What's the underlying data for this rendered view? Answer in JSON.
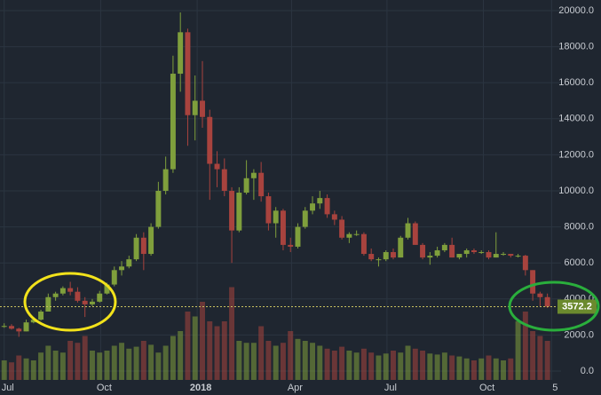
{
  "chart_data": {
    "type": "candlestick",
    "x": [
      0,
      7,
      14,
      21,
      28,
      35,
      42,
      49,
      56,
      63,
      70,
      77,
      84,
      91,
      98,
      105,
      112,
      119,
      126,
      133,
      140,
      147,
      154,
      161,
      168,
      175,
      182,
      189,
      196,
      203,
      210,
      217,
      224,
      231,
      238,
      245,
      252,
      259,
      266,
      273,
      280,
      287,
      294,
      301,
      308,
      315,
      322,
      329,
      336,
      343,
      350,
      357,
      364,
      371,
      378,
      385,
      392,
      399,
      406,
      413,
      420,
      427,
      434,
      441,
      448,
      455,
      462,
      469,
      476,
      483,
      490,
      497,
      504,
      511,
      518
    ],
    "open": [
      2450,
      2500,
      2350,
      2200,
      2700,
      2850,
      3300,
      4100,
      4300,
      4600,
      4400,
      3900,
      3700,
      3850,
      4300,
      4800,
      5600,
      5800,
      6200,
      7400,
      6500,
      8000,
      10000,
      11200,
      16500,
      18800,
      14200,
      15000,
      14100,
      11500,
      11200,
      10000,
      7800,
      9900,
      10700,
      11000,
      9700,
      8200,
      8900,
      7000,
      6900,
      8000,
      8900,
      9300,
      9600,
      8700,
      8400,
      7400,
      7600,
      7600,
      6500,
      6200,
      6200,
      6600,
      6300,
      7400,
      8200,
      7000,
      6300,
      6400,
      6700,
      7000,
      6300,
      6500,
      6700,
      6600,
      6600,
      6300,
      6500,
      6500,
      6400,
      6400,
      5600,
      4300,
      4100
    ],
    "high": [
      2650,
      2600,
      2400,
      2850,
      2900,
      3400,
      4300,
      4400,
      4700,
      4950,
      4650,
      4100,
      4000,
      4450,
      4900,
      5800,
      6100,
      6400,
      7600,
      7700,
      8200,
      10500,
      11900,
      17500,
      19900,
      19000,
      16400,
      17200,
      14500,
      12200,
      11800,
      10200,
      10200,
      11700,
      11200,
      11600,
      9900,
      9100,
      9000,
      7400,
      8200,
      9100,
      9700,
      10000,
      9800,
      8900,
      8600,
      7700,
      7800,
      7700,
      6800,
      6300,
      6700,
      6800,
      7500,
      8500,
      8300,
      7100,
      6600,
      6900,
      7100,
      7400,
      6500,
      6800,
      6800,
      6700,
      6700,
      7700,
      6600,
      6500,
      6500,
      6450,
      5600,
      4400,
      4300
    ],
    "low": [
      2400,
      2300,
      1900,
      2200,
      2650,
      2800,
      3300,
      3900,
      4200,
      4200,
      3800,
      3000,
      3600,
      3800,
      4250,
      4700,
      5300,
      5700,
      6100,
      5600,
      6400,
      7900,
      9800,
      11000,
      15500,
      12500,
      12800,
      13500,
      9500,
      10200,
      9700,
      6000,
      7700,
      9800,
      9500,
      9400,
      7800,
      7400,
      6700,
      6600,
      6800,
      7900,
      8700,
      9000,
      8500,
      8100,
      7300,
      7100,
      7500,
      6400,
      6100,
      5800,
      6100,
      6200,
      6300,
      7300,
      7000,
      6200,
      5900,
      6300,
      6600,
      6300,
      6200,
      6300,
      6500,
      6500,
      6200,
      6300,
      6400,
      6300,
      6300,
      5300,
      3900,
      3600,
      3500
    ],
    "close": [
      2500,
      2350,
      2200,
      2700,
      2850,
      3300,
      4100,
      4300,
      4600,
      4400,
      3900,
      3700,
      3850,
      4300,
      4800,
      5600,
      5800,
      6200,
      7400,
      6500,
      8000,
      10000,
      11200,
      16500,
      18800,
      14200,
      15000,
      14100,
      11500,
      11200,
      10000,
      7800,
      9900,
      10700,
      11000,
      9700,
      8200,
      8900,
      7000,
      6900,
      8000,
      8900,
      9300,
      9600,
      8700,
      8400,
      7400,
      7600,
      7600,
      6500,
      6200,
      6200,
      6600,
      6300,
      7400,
      8200,
      7000,
      6300,
      6400,
      6700,
      7000,
      6300,
      6500,
      6700,
      6600,
      6600,
      6300,
      6500,
      6500,
      6400,
      6400,
      5600,
      4300,
      4100,
      3572.2
    ],
    "volume": [
      20,
      18,
      25,
      22,
      20,
      28,
      35,
      30,
      28,
      40,
      38,
      45,
      30,
      28,
      30,
      35,
      38,
      32,
      34,
      40,
      36,
      28,
      35,
      45,
      50,
      70,
      65,
      80,
      60,
      55,
      60,
      95,
      40,
      38,
      38,
      55,
      40,
      35,
      38,
      50,
      42,
      40,
      38,
      35,
      32,
      30,
      34,
      30,
      28,
      32,
      28,
      25,
      27,
      30,
      28,
      35,
      32,
      30,
      27,
      26,
      28,
      25,
      24,
      22,
      20,
      22,
      25,
      22,
      20,
      22,
      60,
      70,
      50,
      45,
      40
    ],
    "up_color": "#7f9f3c",
    "down_color": "#a8433e",
    "xlim": [
      -4,
      531
    ],
    "xticks": [
      {
        "value": 0,
        "label": "Jul"
      },
      {
        "value": 92,
        "label": "Oct"
      },
      {
        "value": 184,
        "label": "2018"
      },
      {
        "value": 274,
        "label": "Apr"
      },
      {
        "value": 365,
        "label": "Jul"
      },
      {
        "value": 457,
        "label": "Oct"
      },
      {
        "value": 522,
        "label": "5"
      }
    ],
    "ylim": [
      -1330,
      20590
    ],
    "yticks": [
      {
        "value": 0,
        "label": "0.0"
      },
      {
        "value": 2000,
        "label": "2000.0"
      },
      {
        "value": 4000,
        "label": "4000.0"
      },
      {
        "value": 6000,
        "label": "6000.0"
      },
      {
        "value": 8000,
        "label": "8000.0"
      },
      {
        "value": 10000,
        "label": "10000.0"
      },
      {
        "value": 12000,
        "label": "12000.0"
      },
      {
        "value": 14000,
        "label": "14000.0"
      },
      {
        "value": 16000,
        "label": "16000.0"
      },
      {
        "value": 18000,
        "label": "18000.0"
      },
      {
        "value": 20000,
        "label": "20000.0"
      }
    ],
    "grid": true,
    "last_price": 3572.2,
    "last_price_color": "#6b8a2e"
  }
}
